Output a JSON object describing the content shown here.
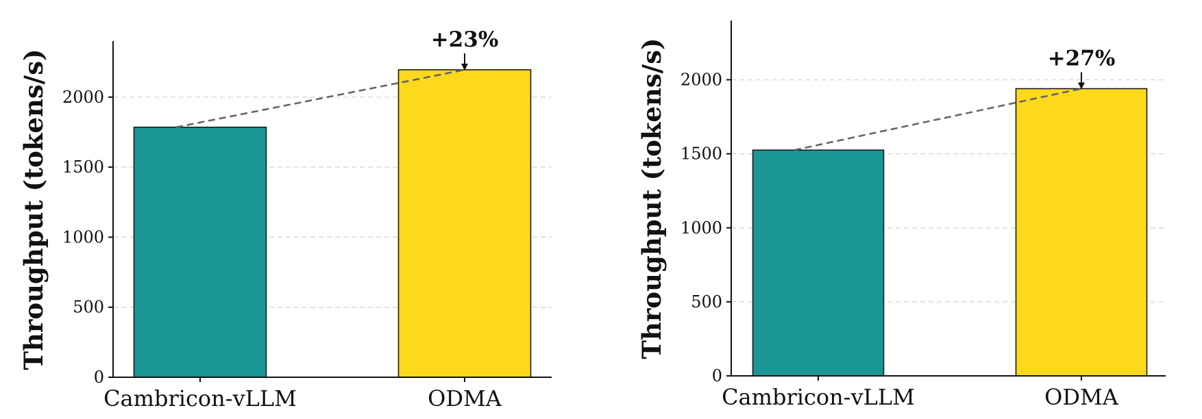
{
  "chart_data": [
    {
      "type": "bar",
      "categories": [
        "Cambricon-vLLM",
        "ODMA"
      ],
      "values": [
        1785,
        2195
      ],
      "colors": [
        "#1a9696",
        "#fdd91d"
      ],
      "ylabel": "Throughput (tokens/s)",
      "xlabel": "",
      "title": "",
      "ylim": [
        0,
        2400
      ],
      "yticks": [
        0,
        500,
        1000,
        1500,
        2000
      ],
      "grid": "y-dashed",
      "annotation": {
        "text": "+23%",
        "from": 0,
        "to": 1
      }
    },
    {
      "type": "bar",
      "categories": [
        "Cambricon-vLLM",
        "ODMA"
      ],
      "values": [
        1525,
        1940
      ],
      "colors": [
        "#1a9696",
        "#fdd91d"
      ],
      "ylabel": "Throughput (tokens/s)",
      "xlabel": "",
      "title": "",
      "ylim": [
        0,
        2400
      ],
      "yticks": [
        0,
        500,
        1000,
        1500,
        2000
      ],
      "grid": "y-dashed",
      "annotation": {
        "text": "+27%",
        "from": 0,
        "to": 1
      }
    }
  ]
}
